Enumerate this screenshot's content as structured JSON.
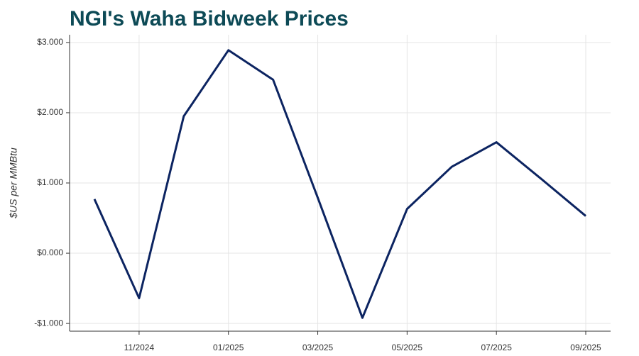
{
  "chart_data": {
    "type": "line",
    "title": "NGI's Waha Bidweek Prices",
    "y_label": "$US per MMBtu",
    "x": [
      "10/2024",
      "11/2024",
      "12/2024",
      "01/2025",
      "02/2025",
      "03/2025",
      "04/2025",
      "05/2025",
      "06/2025",
      "07/2025",
      "08/2025",
      "09/2025"
    ],
    "series": [
      {
        "name": "Waha",
        "color": "#0c2461",
        "values": [
          0.77,
          -0.64,
          1.95,
          2.89,
          2.47,
          0.79,
          -0.92,
          0.63,
          1.23,
          1.58,
          1.06,
          0.53
        ]
      }
    ],
    "xticks": [
      "11/2024",
      "01/2025",
      "03/2025",
      "05/2025",
      "07/2025",
      "09/2025"
    ],
    "ylim": [
      -1.11,
      3.11
    ],
    "yticks": [
      {
        "value": -1,
        "label": "-$1.000"
      },
      {
        "value": 0,
        "label": "$0.000"
      },
      {
        "value": 1,
        "label": "$1.000"
      },
      {
        "value": 2,
        "label": "$2.000"
      },
      {
        "value": 3,
        "label": "$3.000"
      }
    ],
    "grid": true
  }
}
